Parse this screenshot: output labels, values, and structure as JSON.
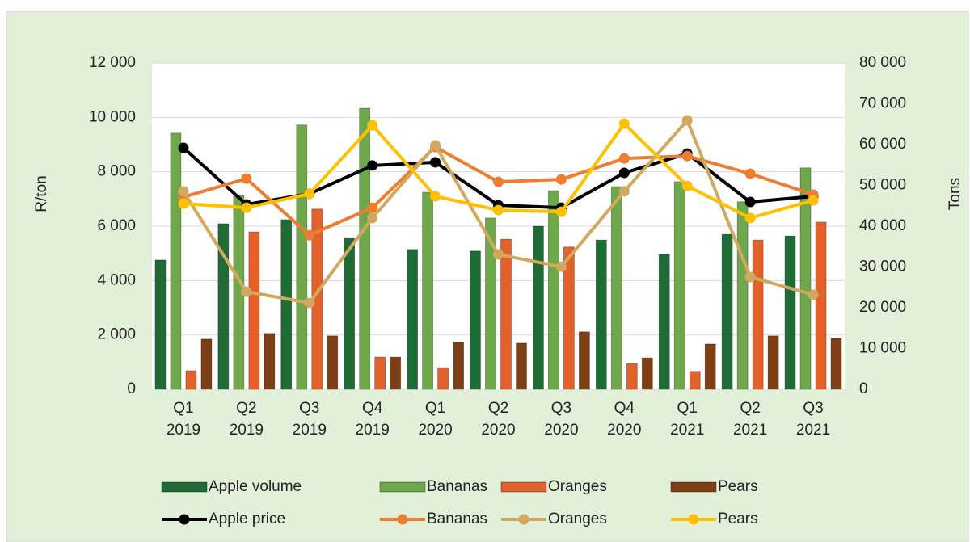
{
  "chart_data": {
    "type": "bar_line_combo",
    "ylabel": "R/ton",
    "y2label": "Tons",
    "categories": [
      "Q1 2019",
      "Q2 2019",
      "Q3 2019",
      "Q4 2019",
      "Q1 2020",
      "Q2 2020",
      "Q3 2020",
      "Q4 2020",
      "Q1 2021",
      "Q2 2021",
      "Q3 2021"
    ],
    "ylim": [
      0,
      12000
    ],
    "yticks": [
      0,
      {
        "value": 2000,
        "label": "2 000"
      },
      {
        "value": 4000,
        "label": "4 000"
      },
      {
        "value": 6000,
        "label": "6 000"
      },
      {
        "value": 8000,
        "label": "8 000"
      },
      {
        "value": 10000,
        "label": "10 000"
      },
      {
        "value": 12000,
        "label": "12 000"
      }
    ],
    "y2lim": [
      0,
      80000
    ],
    "y2ticks": [
      0,
      {
        "value": 10000,
        "label": "10 000"
      },
      {
        "value": 20000,
        "label": "20 000"
      },
      {
        "value": 30000,
        "label": "30 000"
      },
      {
        "value": 40000,
        "label": "40 000"
      },
      {
        "value": 50000,
        "label": "50 000"
      },
      {
        "value": 60000,
        "label": "60 000"
      },
      {
        "value": 70000,
        "label": "70 000"
      },
      {
        "value": 80000,
        "label": "80 000"
      }
    ],
    "grid": true,
    "legend": "bottom",
    "series": [
      {
        "name": "Apple volume",
        "type": "bar",
        "axis": "y2",
        "color": "#1f6b36",
        "values": [
          31700,
          40600,
          41600,
          37000,
          34300,
          33900,
          40000,
          36600,
          33100,
          38000,
          37600
        ]
      },
      {
        "name": "Bananas",
        "type": "bar",
        "axis": "y2",
        "color": "#6fa84a",
        "values": [
          62800,
          47500,
          64800,
          68900,
          48300,
          42000,
          48700,
          49700,
          50900,
          46000,
          54300
        ]
      },
      {
        "name": "Oranges",
        "type": "bar",
        "axis": "y2",
        "color": "#e2622a",
        "values": [
          4550,
          38600,
          44200,
          7900,
          5300,
          36800,
          34900,
          6300,
          4400,
          36600,
          41000
        ]
      },
      {
        "name": "Pears",
        "type": "bar",
        "axis": "y2",
        "color": "#7f3f16",
        "values": [
          12300,
          13700,
          13100,
          7900,
          11500,
          11300,
          14100,
          7700,
          11100,
          13100,
          12500
        ]
      },
      {
        "name": "Apple price",
        "type": "line",
        "color": "#000000",
        "values": [
          8880,
          6800,
          7190,
          8230,
          8350,
          6770,
          6680,
          7960,
          8670,
          6890,
          7100
        ]
      },
      {
        "name": "Bananas",
        "type": "line",
        "color": "#ed7d31",
        "values": [
          7070,
          7750,
          5670,
          6680,
          8910,
          7630,
          7720,
          8490,
          8580,
          7930,
          7160
        ]
      },
      {
        "name": "Oranges",
        "type": "line",
        "color": "#d2a85e",
        "values": [
          7280,
          3590,
          3180,
          6300,
          8970,
          4960,
          4510,
          7280,
          9890,
          4130,
          3480
        ]
      },
      {
        "name": "Pears",
        "type": "line",
        "color": "#ffc000",
        "values": [
          6830,
          6680,
          7190,
          9710,
          7100,
          6590,
          6530,
          9770,
          7480,
          6300,
          6950
        ]
      }
    ]
  }
}
